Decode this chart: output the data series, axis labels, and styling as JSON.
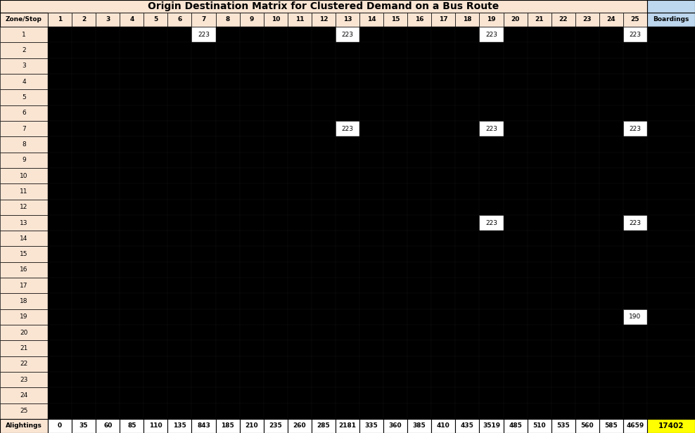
{
  "title": "Origin Destination Matrix for Clustered Demand on a Bus Route",
  "alightings_label": "Alightings",
  "alightings": [
    "0",
    "35",
    "60",
    "85",
    "110",
    "135",
    "843",
    "185",
    "210",
    "235",
    "260",
    "285",
    "2181",
    "335",
    "360",
    "385",
    "410",
    "435",
    "3519",
    "485",
    "510",
    "535",
    "560",
    "585",
    "4659",
    "17402"
  ],
  "non_zero_cells": [
    {
      "row": 0,
      "col": 6,
      "value": "223"
    },
    {
      "row": 0,
      "col": 12,
      "value": "223"
    },
    {
      "row": 0,
      "col": 18,
      "value": "223"
    },
    {
      "row": 0,
      "col": 24,
      "value": "223"
    },
    {
      "row": 6,
      "col": 12,
      "value": "223"
    },
    {
      "row": 6,
      "col": 18,
      "value": "223"
    },
    {
      "row": 6,
      "col": 24,
      "value": "223"
    },
    {
      "row": 12,
      "col": 18,
      "value": "223"
    },
    {
      "row": 12,
      "col": 24,
      "value": "223"
    },
    {
      "row": 18,
      "col": 24,
      "value": "190"
    }
  ],
  "n_rows": 25,
  "n_data_cols": 25,
  "header_bg": "#FAE5D3",
  "boardings_header_bg": "#BDD7EE",
  "cell_black": "#000000",
  "cell_white": "#FFFFFF",
  "alightings_yellow": "#FFFF00",
  "row_header_bg": "#FAE5D3",
  "title_fontsize": 10,
  "cell_fontsize": 6.5,
  "header_fontsize": 6.5
}
